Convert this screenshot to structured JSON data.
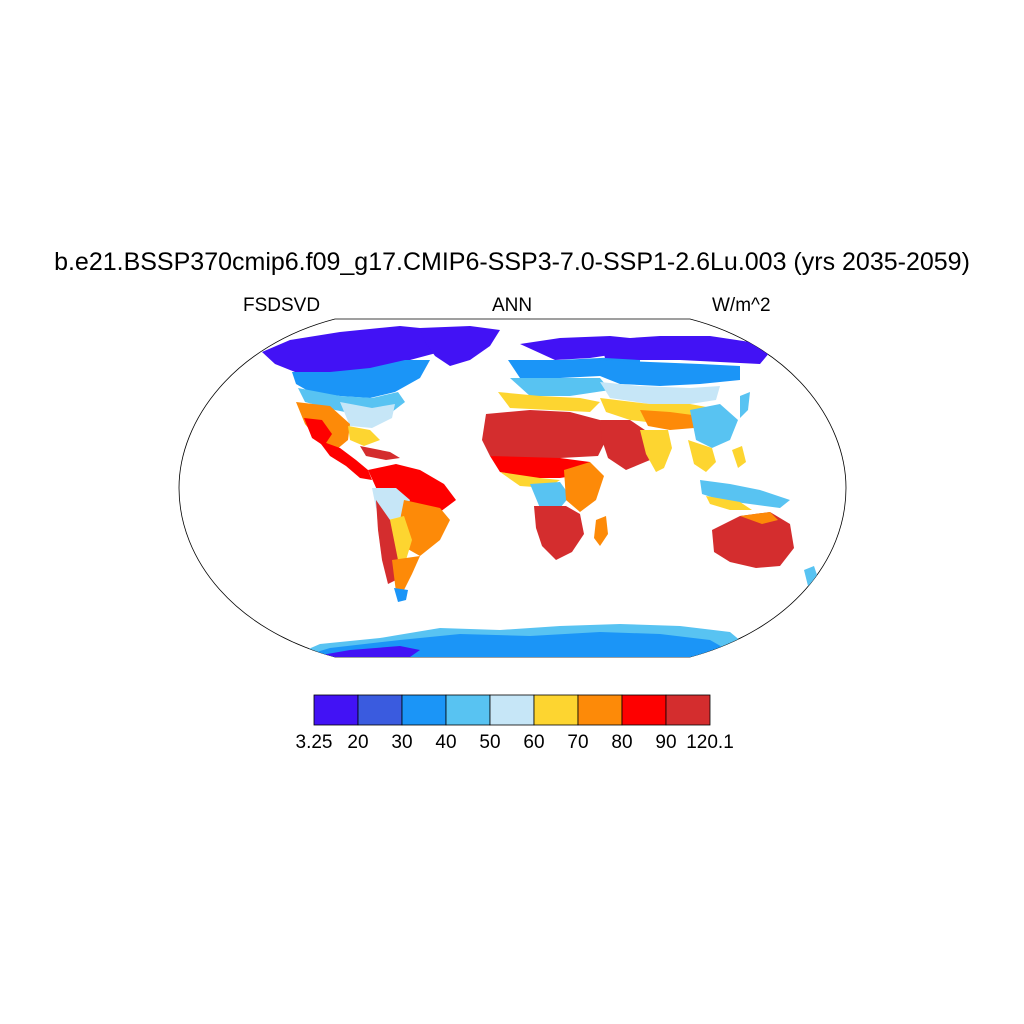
{
  "figure": {
    "title": "b.e21.BSSP370cmip6.f09_g17.CMIP6-SSP3-7.0-SSP1-2.6Lu.003 (yrs 2035-2059)",
    "left_label": "FSDSVD",
    "center_label": "ANN",
    "right_label": "W/m^2"
  },
  "map": {
    "projection": "Robinson",
    "field": "FSDSVD",
    "region": "global land"
  },
  "colorbar": {
    "orientation": "horizontal",
    "labels": [
      "3.25",
      "20",
      "30",
      "40",
      "50",
      "60",
      "70",
      "80",
      "90",
      "120.1"
    ],
    "colors": [
      "#4212f5",
      "#3a5bdf",
      "#1b95f7",
      "#58c3f2",
      "#c6e6f7",
      "#fdd530",
      "#fd8a08",
      "#fe0000",
      "#d42d2e"
    ]
  },
  "palette": {
    "border": "#000000",
    "ocean": "#ffffff"
  }
}
